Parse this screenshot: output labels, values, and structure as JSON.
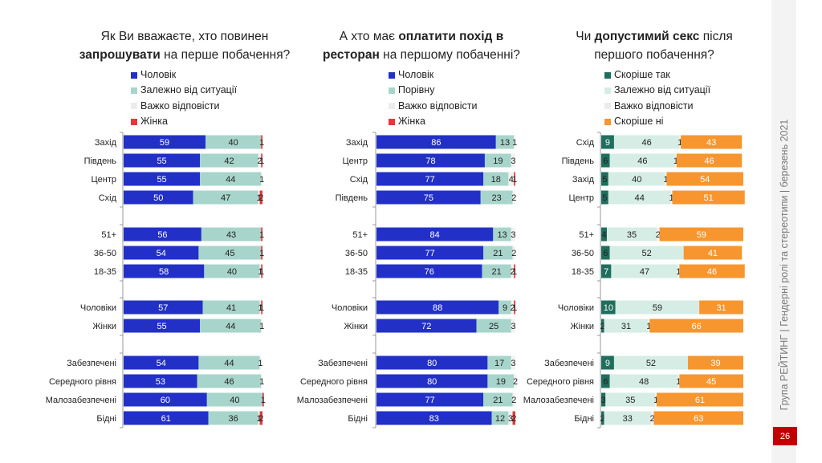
{
  "sidebar": {
    "caption": "Група РЕЙТИНГ | Гендерні ролі та стереотипи | березень 2021",
    "page_number": "26"
  },
  "chart_data": [
    {
      "type": "bar",
      "orientation": "horizontal-stacked-100",
      "title_parts": [
        {
          "text": "Як Ви вважаєте, хто повинен",
          "bold": false,
          "br": true
        },
        {
          "text": "запрошувати",
          "bold": true
        },
        {
          "text": " на перше побачення?",
          "bold": false
        }
      ],
      "legend": [
        "Чоловік",
        "Залежно від ситуації",
        "Важко відповісти",
        "Жінка"
      ],
      "colors": [
        "#2230c8",
        "#a8d5cb",
        "#f2f2f2",
        "#e03a3a"
      ],
      "label_colors": [
        "#ffffff",
        "#222222",
        "#222222",
        "#222222"
      ],
      "groups": [
        [
          "Захід",
          "Південь",
          "Центр",
          "Схід"
        ],
        [
          "51+",
          "36-50",
          "18-35"
        ],
        [
          "Чоловіки",
          "Жінки"
        ],
        [
          "Забезпечені",
          "Середного рівня",
          "Малозабезпечені",
          "Бідні"
        ]
      ],
      "rows": [
        {
          "category": "Захід",
          "values": [
            59,
            40,
            0,
            1
          ]
        },
        {
          "category": "Південь",
          "values": [
            55,
            42,
            2,
            1
          ]
        },
        {
          "category": "Центр",
          "values": [
            55,
            44,
            1,
            0
          ]
        },
        {
          "category": "Схід",
          "values": [
            50,
            47,
            1,
            2
          ]
        },
        {
          "category": "51+",
          "values": [
            56,
            43,
            0,
            1
          ]
        },
        {
          "category": "36-50",
          "values": [
            54,
            45,
            0,
            1
          ]
        },
        {
          "category": "18-35",
          "values": [
            58,
            40,
            1,
            1
          ]
        },
        {
          "category": "Чоловіки",
          "values": [
            57,
            41,
            1,
            1
          ]
        },
        {
          "category": "Жінки",
          "values": [
            55,
            44,
            1,
            0
          ]
        },
        {
          "category": "Забезпечені",
          "values": [
            54,
            44,
            1,
            0
          ]
        },
        {
          "category": "Середного рівня",
          "values": [
            53,
            46,
            1,
            0
          ]
        },
        {
          "category": "Малозабезпечені",
          "values": [
            60,
            40,
            0,
            1
          ]
        },
        {
          "category": "Бідні",
          "values": [
            61,
            36,
            1,
            2
          ]
        }
      ],
      "xlim": [
        0,
        100
      ]
    },
    {
      "type": "bar",
      "orientation": "horizontal-stacked-100",
      "title_parts": [
        {
          "text": "А хто має ",
          "bold": false
        },
        {
          "text": "оплатити похід в",
          "bold": true,
          "br": true
        },
        {
          "text": "ресторан",
          "bold": true
        },
        {
          "text": " на першому побаченні?",
          "bold": false
        }
      ],
      "legend": [
        "Чоловік",
        "Порівну",
        "Важко відповісти",
        "Жінка"
      ],
      "colors": [
        "#2230c8",
        "#a8d5cb",
        "#f2f2f2",
        "#e03a3a"
      ],
      "label_colors": [
        "#ffffff",
        "#222222",
        "#222222",
        "#222222"
      ],
      "groups": [
        [
          "Захід",
          "Центр",
          "Схід",
          "Південь"
        ],
        [
          "51+",
          "36-50",
          "18-35"
        ],
        [
          "Чоловіки",
          "Жінки"
        ],
        [
          "Забезпечені",
          "Середного рівня",
          "Малозабезпечені",
          "Бідні"
        ]
      ],
      "rows": [
        {
          "category": "Захід",
          "values": [
            86,
            13,
            1,
            0
          ]
        },
        {
          "category": "Центр",
          "values": [
            78,
            19,
            3,
            0
          ]
        },
        {
          "category": "Схід",
          "values": [
            77,
            18,
            4,
            1
          ]
        },
        {
          "category": "Південь",
          "values": [
            75,
            23,
            2,
            0
          ]
        },
        {
          "category": "51+",
          "values": [
            84,
            13,
            3,
            0
          ]
        },
        {
          "category": "36-50",
          "values": [
            77,
            21,
            2,
            0
          ]
        },
        {
          "category": "18-35",
          "values": [
            76,
            21,
            2,
            1
          ]
        },
        {
          "category": "Чоловіки",
          "values": [
            88,
            9,
            2,
            1
          ]
        },
        {
          "category": "Жінки",
          "values": [
            72,
            25,
            3,
            0
          ]
        },
        {
          "category": "Забезпечені",
          "values": [
            80,
            17,
            3,
            0
          ]
        },
        {
          "category": "Середного рівня",
          "values": [
            80,
            19,
            2,
            0
          ]
        },
        {
          "category": "Малозабезпечені",
          "values": [
            77,
            21,
            2,
            0
          ]
        },
        {
          "category": "Бідні",
          "values": [
            83,
            12,
            3,
            2
          ]
        }
      ],
      "xlim": [
        0,
        100
      ]
    },
    {
      "type": "bar",
      "orientation": "horizontal-stacked-100",
      "title_parts": [
        {
          "text": "Чи ",
          "bold": false
        },
        {
          "text": "допустимий секс",
          "bold": true
        },
        {
          "text": " після",
          "bold": false,
          "br": true
        },
        {
          "text": "першого побачення?",
          "bold": false
        }
      ],
      "legend": [
        "Скоріше так",
        "Залежно від ситуації",
        "Важко відповісти",
        "Скоріше ні"
      ],
      "colors": [
        "#1f6e5e",
        "#d6ede6",
        "#f2f2f2",
        "#f7962e"
      ],
      "label_colors": [
        "#ffffff",
        "#222222",
        "#222222",
        "#ffffff"
      ],
      "groups": [
        [
          "Схід",
          "Південь",
          "Захід",
          "Центр"
        ],
        [
          "51+",
          "36-50",
          "18-35"
        ],
        [
          "Чоловіки",
          "Жінки"
        ],
        [
          "Забезпечені",
          "Середного рівня",
          "Малозабезпечені",
          "Бідні"
        ]
      ],
      "rows": [
        {
          "category": "Схід",
          "values": [
            9,
            46,
            1,
            43
          ]
        },
        {
          "category": "Південь",
          "values": [
            6,
            46,
            1,
            46
          ]
        },
        {
          "category": "Захід",
          "values": [
            5,
            40,
            1,
            54
          ]
        },
        {
          "category": "Центр",
          "values": [
            5,
            44,
            1,
            51
          ]
        },
        {
          "category": "51+",
          "values": [
            4,
            35,
            2,
            59
          ]
        },
        {
          "category": "36-50",
          "values": [
            6,
            52,
            0,
            41
          ]
        },
        {
          "category": "18-35",
          "values": [
            7,
            47,
            1,
            46
          ]
        },
        {
          "category": "Чоловіки",
          "values": [
            10,
            59,
            0,
            31
          ]
        },
        {
          "category": "Жінки",
          "values": [
            2,
            31,
            1,
            66
          ]
        },
        {
          "category": "Забезпечені",
          "values": [
            9,
            52,
            0,
            39
          ]
        },
        {
          "category": "Середного рівня",
          "values": [
            6,
            48,
            1,
            45
          ]
        },
        {
          "category": "Малозабезпечені",
          "values": [
            3,
            35,
            1,
            61
          ]
        },
        {
          "category": "Бідні",
          "values": [
            2,
            33,
            2,
            63
          ]
        }
      ],
      "xlim": [
        0,
        100
      ]
    }
  ]
}
